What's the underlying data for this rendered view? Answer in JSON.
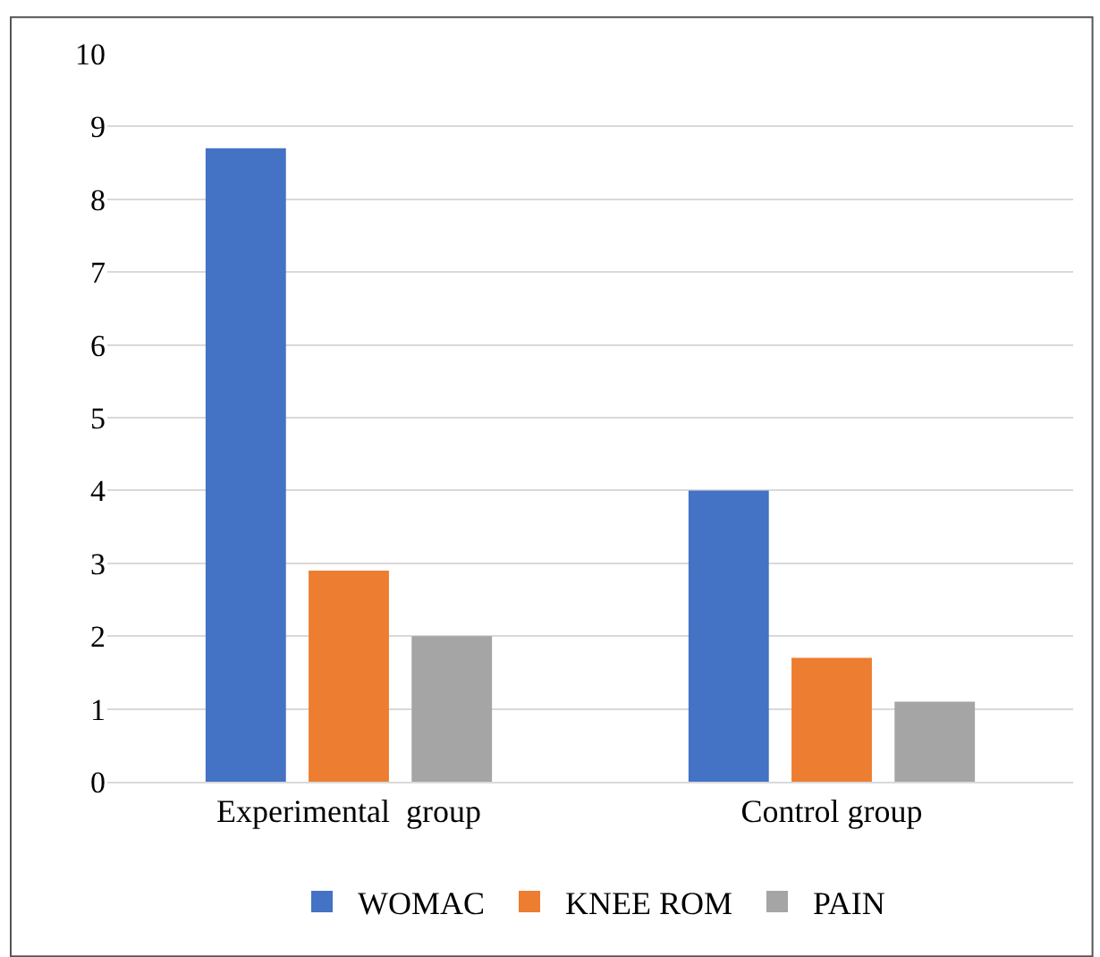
{
  "chart_data": {
    "type": "bar",
    "categories": [
      "Experimental  group",
      "Control group"
    ],
    "series": [
      {
        "name": "WOMAC",
        "color": "#4472c4",
        "values": [
          8.7,
          4.0
        ]
      },
      {
        "name": "KNEE ROM",
        "color": "#ed7d31",
        "values": [
          2.9,
          1.7
        ]
      },
      {
        "name": "PAIN",
        "color": "#a5a5a5",
        "values": [
          2.0,
          1.1
        ]
      }
    ],
    "ylim": [
      0,
      10
    ],
    "yticks": [
      0,
      1,
      2,
      3,
      4,
      5,
      6,
      7,
      8,
      9,
      10
    ],
    "grid": "y",
    "legend": "bottom"
  }
}
